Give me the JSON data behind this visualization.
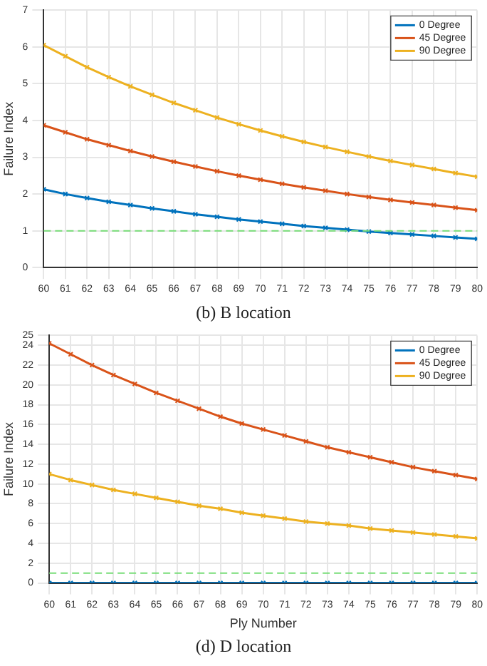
{
  "chart_data": [
    {
      "type": "line",
      "ylabel": "Failure Index",
      "x": [
        60,
        61,
        62,
        63,
        64,
        65,
        66,
        67,
        68,
        69,
        70,
        71,
        72,
        73,
        74,
        75,
        76,
        77,
        78,
        79,
        80
      ],
      "xlim": [
        60,
        80
      ],
      "xticks": [
        60,
        61,
        62,
        63,
        64,
        65,
        66,
        67,
        68,
        69,
        70,
        71,
        72,
        73,
        74,
        75,
        76,
        77,
        78,
        79,
        80
      ],
      "ylim": [
        0,
        7
      ],
      "yticks": [
        0,
        1,
        2,
        3,
        4,
        5,
        6,
        7
      ],
      "grid": true,
      "legend": "top right",
      "marker": "cross",
      "line_style": "solid",
      "series": [
        {
          "name": "0 Degree",
          "color": "#0072bd",
          "values": [
            2.13,
            2.0,
            1.89,
            1.79,
            1.7,
            1.61,
            1.53,
            1.45,
            1.38,
            1.31,
            1.25,
            1.19,
            1.13,
            1.08,
            1.03,
            0.98,
            0.94,
            0.9,
            0.86,
            0.82,
            0.78
          ]
        },
        {
          "name": "45 Degree",
          "color": "#d95319",
          "values": [
            3.87,
            3.68,
            3.49,
            3.33,
            3.17,
            3.02,
            2.88,
            2.75,
            2.62,
            2.5,
            2.39,
            2.28,
            2.18,
            2.09,
            2.0,
            1.92,
            1.84,
            1.77,
            1.7,
            1.63,
            1.56
          ]
        },
        {
          "name": "90 Degree",
          "color": "#edb120",
          "values": [
            6.05,
            5.75,
            5.45,
            5.18,
            4.93,
            4.7,
            4.48,
            4.28,
            4.08,
            3.9,
            3.73,
            3.57,
            3.42,
            3.28,
            3.15,
            3.02,
            2.9,
            2.79,
            2.68,
            2.57,
            2.47
          ]
        }
      ],
      "ref_lines": [
        {
          "axis": "y",
          "value": 1,
          "color": "#77dd77",
          "line_style": "dashed"
        }
      ],
      "annotations": [
        "(b)  B  location"
      ]
    },
    {
      "type": "line",
      "xlabel": "Ply Number",
      "ylabel": "Failure Index",
      "x": [
        60,
        61,
        62,
        63,
        64,
        65,
        66,
        67,
        68,
        69,
        70,
        71,
        72,
        73,
        74,
        75,
        76,
        77,
        78,
        79,
        80
      ],
      "xlim": [
        60,
        80
      ],
      "xticks": [
        60,
        61,
        62,
        63,
        64,
        65,
        66,
        67,
        68,
        69,
        70,
        71,
        72,
        73,
        74,
        75,
        76,
        77,
        78,
        79,
        80
      ],
      "ylim": [
        0,
        25
      ],
      "yticks": [
        0,
        2,
        4,
        6,
        8,
        10,
        12,
        14,
        16,
        18,
        20,
        22,
        24,
        25
      ],
      "grid": true,
      "legend": "top right",
      "marker": "cross",
      "line_style": "solid",
      "series": [
        {
          "name": "0 Degree",
          "color": "#0072bd",
          "values": [
            0,
            0,
            0,
            0,
            0,
            0,
            0,
            0,
            0,
            0,
            0,
            0,
            0,
            0,
            0,
            0,
            0,
            0,
            0,
            0,
            0
          ]
        },
        {
          "name": "45 Degree",
          "color": "#d95319",
          "values": [
            24.2,
            23.1,
            22.0,
            21.0,
            20.1,
            19.2,
            18.4,
            17.6,
            16.8,
            16.1,
            15.5,
            14.9,
            14.3,
            13.7,
            13.2,
            12.7,
            12.2,
            11.7,
            11.3,
            10.9,
            10.5
          ]
        },
        {
          "name": "90 Degree",
          "color": "#edb120",
          "values": [
            11.0,
            10.4,
            9.9,
            9.4,
            9.0,
            8.6,
            8.2,
            7.8,
            7.5,
            7.1,
            6.8,
            6.5,
            6.2,
            6.0,
            5.8,
            5.5,
            5.3,
            5.1,
            4.9,
            4.7,
            4.5
          ]
        }
      ],
      "ref_lines": [
        {
          "axis": "y",
          "value": 1,
          "color": "#77dd77",
          "line_style": "dashed"
        }
      ],
      "annotations": [
        "(d)  D  location"
      ]
    }
  ]
}
